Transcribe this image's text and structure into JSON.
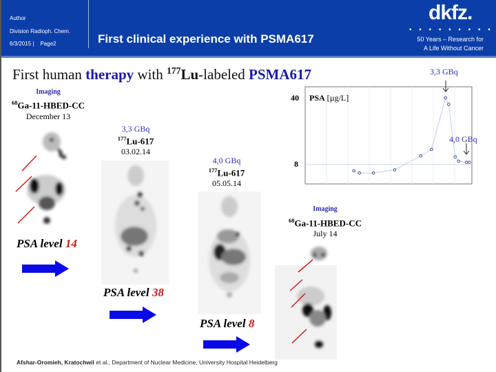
{
  "header": {
    "author": "Author",
    "division": "Division Radioph.  Chem.",
    "date_page": "6/3/2015 |    Page2",
    "title": "First clinical experience with PSMA617",
    "logo": "dkfz.",
    "logo_dots": "• • • • • • • • •",
    "tagline_1": "50 Years – Research for",
    "tagline_2": "A Life Without Cancer",
    "color": "#0b3ea8"
  },
  "subtitle": {
    "part1": "First human ",
    "part2": "therapy",
    "part3": " with ",
    "sup": "177",
    "part4": "Lu",
    "part5": "-labeled ",
    "part6": "PSMA617"
  },
  "panels": [
    {
      "label": "Imaging",
      "tracer_sup": "68",
      "tracer": "Ga-11-HBED-CC",
      "date": "December 13",
      "psa_label": "PSA level ",
      "psa_value": "14"
    },
    {
      "dose": "3,3 GBq",
      "tracer_sup": "177",
      "tracer": "Lu-617",
      "date": "03.02.14",
      "psa_label": "PSA level ",
      "psa_value": "38"
    },
    {
      "dose": "4,0 GBq",
      "tracer_sup": "177",
      "tracer": "Lu-617",
      "date": "05.05.14",
      "psa_label": "PSA level ",
      "psa_value": "8"
    },
    {
      "label": "Imaging",
      "tracer_sup": "68",
      "tracer": "Ga-11-HBED-CC",
      "date": "July 14"
    }
  ],
  "chart_data": {
    "type": "line",
    "ylabel_bold": "PSA",
    "ylabel_unit": " [µg/L]",
    "y_ticks": [
      "40",
      "8"
    ],
    "values": [
      5,
      4,
      4,
      5.5,
      12,
      15,
      39,
      36,
      11.5,
      9.5,
      9,
      9
    ],
    "annotations": [
      "3,3 GBq",
      "4,0 GBq"
    ],
    "reference_line": 8,
    "grid": true,
    "line_color": "#c8d8ec",
    "point_color": "#4a4a90"
  },
  "footer": {
    "authors": "Afshar-Oromieh,  Kratochwil",
    "rest": " et al., Department  of Nuclear Medicine,  University  Hospital  Heidelberg"
  }
}
